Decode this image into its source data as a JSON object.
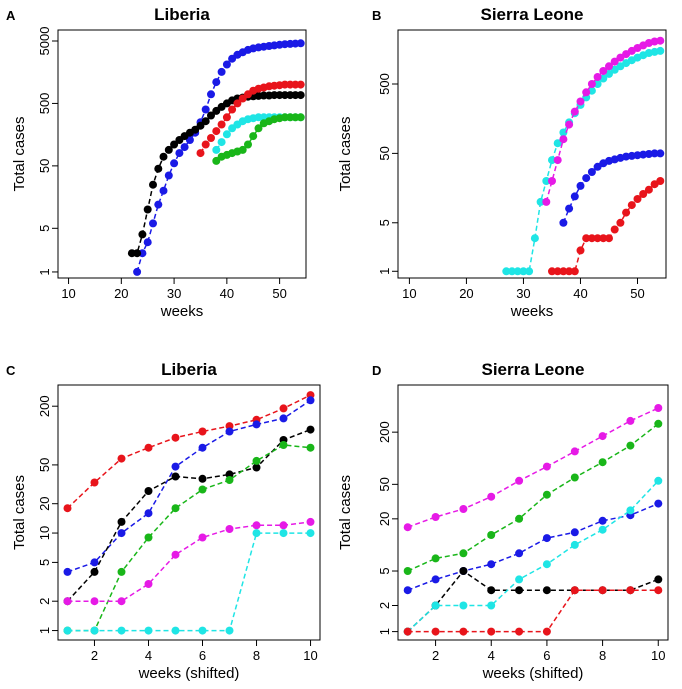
{
  "colors": {
    "black": "#000000",
    "red": "#e8141b",
    "blue": "#1a1ae6",
    "cyan": "#1fe5e5",
    "green": "#19b619",
    "magenta": "#e61ae6"
  },
  "chart_data": [
    {
      "id": "A",
      "type": "line",
      "title": "Liberia",
      "xlabel": "weeks",
      "ylabel": "Total cases",
      "xlim": [
        8,
        55
      ],
      "ylim": [
        0.8,
        7500
      ],
      "yscale": "log",
      "xticks": [
        10,
        20,
        30,
        40,
        50
      ],
      "yticks": [
        1,
        5,
        50,
        500,
        5000
      ],
      "series": [
        {
          "color": "blue",
          "x": [
            23,
            24,
            25,
            26,
            27,
            28,
            29,
            30,
            31,
            32,
            33,
            34,
            35,
            36,
            37,
            38,
            39,
            40,
            41,
            42,
            43,
            44,
            45,
            46,
            47,
            48,
            49,
            50,
            51,
            52,
            53,
            54
          ],
          "y": [
            1,
            2,
            3,
            6,
            12,
            20,
            35,
            55,
            80,
            100,
            130,
            170,
            250,
            400,
            700,
            1100,
            1600,
            2100,
            2600,
            3000,
            3300,
            3600,
            3800,
            3950,
            4050,
            4150,
            4250,
            4350,
            4450,
            4500,
            4550,
            4600
          ]
        },
        {
          "color": "black",
          "x": [
            22,
            23,
            24,
            25,
            26,
            27,
            28,
            29,
            30,
            31,
            32,
            33,
            34,
            35,
            36,
            37,
            38,
            39,
            40,
            41,
            42,
            43,
            44,
            45,
            46,
            47,
            48,
            49,
            50,
            51,
            52,
            53,
            54
          ],
          "y": [
            2,
            2,
            4,
            10,
            25,
            45,
            70,
            90,
            110,
            130,
            150,
            170,
            190,
            220,
            260,
            320,
            380,
            440,
            500,
            560,
            600,
            620,
            640,
            650,
            660,
            670,
            670,
            680,
            680,
            680,
            680,
            680,
            680
          ]
        },
        {
          "color": "red",
          "x": [
            35,
            36,
            37,
            38,
            39,
            40,
            41,
            42,
            43,
            44,
            45,
            46,
            47,
            48,
            49,
            50,
            51,
            52,
            53,
            54
          ],
          "y": [
            80,
            110,
            140,
            180,
            230,
            300,
            400,
            500,
            600,
            700,
            800,
            860,
            900,
            940,
            960,
            980,
            1000,
            1000,
            1000,
            1000
          ]
        },
        {
          "color": "cyan",
          "x": [
            38,
            39,
            40,
            41,
            42,
            43,
            44,
            45,
            46,
            47,
            48,
            49,
            50,
            51,
            52,
            53,
            54
          ],
          "y": [
            90,
            120,
            160,
            200,
            230,
            260,
            280,
            290,
            300,
            300,
            300,
            300,
            300,
            300,
            300,
            300,
            300
          ]
        },
        {
          "color": "green",
          "x": [
            38,
            39,
            40,
            41,
            42,
            43,
            44,
            45,
            46,
            47,
            48,
            49,
            50,
            51,
            52,
            53,
            54
          ],
          "y": [
            60,
            70,
            75,
            80,
            85,
            90,
            110,
            150,
            200,
            240,
            260,
            280,
            290,
            300,
            300,
            300,
            300
          ]
        }
      ]
    },
    {
      "id": "B",
      "type": "line",
      "title": "Sierra Leone",
      "xlabel": "weeks",
      "ylabel": "Total cases",
      "xlim": [
        8,
        55
      ],
      "ylim": [
        0.8,
        3000
      ],
      "yscale": "log",
      "xticks": [
        10,
        20,
        30,
        40,
        50
      ],
      "yticks": [
        1,
        5,
        50,
        500
      ],
      "series": [
        {
          "color": "cyan",
          "x": [
            27,
            28,
            29,
            30,
            31,
            32,
            33,
            34,
            35,
            36,
            37,
            38,
            39,
            40,
            41,
            42,
            43,
            44,
            45,
            46,
            47,
            48,
            49,
            50,
            51,
            52,
            53,
            54
          ],
          "y": [
            1,
            1,
            1,
            1,
            1,
            3,
            10,
            20,
            40,
            70,
            100,
            140,
            190,
            250,
            320,
            400,
            500,
            600,
            700,
            800,
            900,
            1000,
            1100,
            1200,
            1300,
            1400,
            1450,
            1500
          ]
        },
        {
          "color": "magenta",
          "x": [
            34,
            35,
            36,
            37,
            38,
            39,
            40,
            41,
            42,
            43,
            44,
            45,
            46,
            47,
            48,
            49,
            50,
            51,
            52,
            53,
            54
          ],
          "y": [
            10,
            20,
            40,
            80,
            130,
            200,
            280,
            380,
            500,
            630,
            770,
            900,
            1050,
            1200,
            1350,
            1500,
            1650,
            1800,
            1950,
            2050,
            2100
          ]
        },
        {
          "color": "red",
          "x": [
            35,
            36,
            37,
            38,
            39,
            40,
            41,
            42,
            43,
            44,
            45,
            46,
            47,
            48,
            49,
            50,
            51,
            52,
            53,
            54
          ],
          "y": [
            1,
            1,
            1,
            1,
            1,
            2,
            3,
            3,
            3,
            3,
            3,
            4,
            5,
            7,
            9,
            11,
            13,
            15,
            18,
            20
          ]
        },
        {
          "color": "blue",
          "x": [
            37,
            38,
            39,
            40,
            41,
            42,
            43,
            44,
            45,
            46,
            47,
            48,
            49,
            50,
            51,
            52,
            53,
            54
          ],
          "y": [
            5,
            8,
            12,
            17,
            22,
            27,
            32,
            36,
            39,
            41,
            43,
            45,
            46,
            47,
            48,
            49,
            50,
            50
          ]
        }
      ]
    },
    {
      "id": "C",
      "type": "line",
      "title": "Liberia",
      "xlabel": "weeks (shifted)",
      "ylabel": "Total cases",
      "xlim": [
        0.65,
        10.35
      ],
      "ylim": [
        0.8,
        330
      ],
      "yscale": "log",
      "xticks": [
        2,
        4,
        6,
        8,
        10
      ],
      "yticks": [
        1,
        2,
        5,
        10,
        20,
        50,
        200
      ],
      "series": [
        {
          "color": "red",
          "x": [
            1,
            2,
            3,
            4,
            5,
            6,
            7,
            8,
            9,
            10
          ],
          "y": [
            18,
            33,
            58,
            75,
            95,
            110,
            125,
            145,
            190,
            260
          ]
        },
        {
          "color": "blue",
          "x": [
            1,
            2,
            3,
            4,
            5,
            6,
            7,
            8,
            9,
            10
          ],
          "y": [
            4,
            5,
            10,
            16,
            48,
            75,
            110,
            130,
            150,
            230
          ]
        },
        {
          "color": "black",
          "x": [
            1,
            2,
            3,
            4,
            5,
            6,
            7,
            8,
            9,
            10
          ],
          "y": [
            2,
            4,
            13,
            27,
            38,
            36,
            40,
            47,
            90,
            115
          ]
        },
        {
          "color": "green",
          "x": [
            1,
            2,
            3,
            4,
            5,
            6,
            7,
            8,
            9,
            10
          ],
          "y": [
            1,
            1,
            4,
            9,
            18,
            28,
            35,
            55,
            80,
            75
          ]
        },
        {
          "color": "magenta",
          "x": [
            1,
            2,
            3,
            4,
            5,
            6,
            7,
            8,
            9,
            10
          ],
          "y": [
            2,
            2,
            2,
            3,
            6,
            9,
            11,
            12,
            12,
            13
          ]
        },
        {
          "color": "cyan",
          "x": [
            1,
            2,
            3,
            4,
            5,
            6,
            7,
            8,
            9,
            10
          ],
          "y": [
            1,
            1,
            1,
            1,
            1,
            1,
            1,
            10,
            10,
            10
          ]
        }
      ]
    },
    {
      "id": "D",
      "type": "line",
      "title": "Sierra Leone",
      "xlabel": "weeks (shifted)",
      "ylabel": "Total cases",
      "xlim": [
        0.65,
        10.35
      ],
      "ylim": [
        0.8,
        700
      ],
      "yscale": "log",
      "xticks": [
        2,
        4,
        6,
        8,
        10
      ],
      "yticks": [
        1,
        2,
        5,
        20,
        50,
        200
      ],
      "series": [
        {
          "color": "magenta",
          "x": [
            1,
            2,
            3,
            4,
            5,
            6,
            7,
            8,
            9,
            10
          ],
          "y": [
            16,
            21,
            26,
            36,
            55,
            80,
            120,
            180,
            270,
            380
          ]
        },
        {
          "color": "green",
          "x": [
            1,
            2,
            3,
            4,
            5,
            6,
            7,
            8,
            9,
            10
          ],
          "y": [
            5,
            7,
            8,
            13,
            20,
            38,
            60,
            90,
            140,
            250
          ]
        },
        {
          "color": "blue",
          "x": [
            1,
            2,
            3,
            4,
            5,
            6,
            7,
            8,
            9,
            10
          ],
          "y": [
            3,
            4,
            5,
            6,
            8,
            12,
            14,
            19,
            22,
            30
          ]
        },
        {
          "color": "black",
          "x": [
            1,
            2,
            3,
            4,
            5,
            6,
            7,
            8,
            9,
            10
          ],
          "y": [
            1,
            2,
            5,
            3,
            3,
            3,
            3,
            3,
            3,
            4
          ]
        },
        {
          "color": "cyan",
          "x": [
            1,
            2,
            3,
            4,
            5,
            6,
            7,
            8,
            9,
            10
          ],
          "y": [
            1,
            2,
            2,
            2,
            4,
            6,
            10,
            15,
            25,
            55
          ]
        },
        {
          "color": "red",
          "x": [
            1,
            2,
            3,
            4,
            5,
            6,
            7,
            8,
            9,
            10
          ],
          "y": [
            1,
            1,
            1,
            1,
            1,
            1,
            3,
            3,
            3,
            3
          ]
        }
      ]
    }
  ]
}
